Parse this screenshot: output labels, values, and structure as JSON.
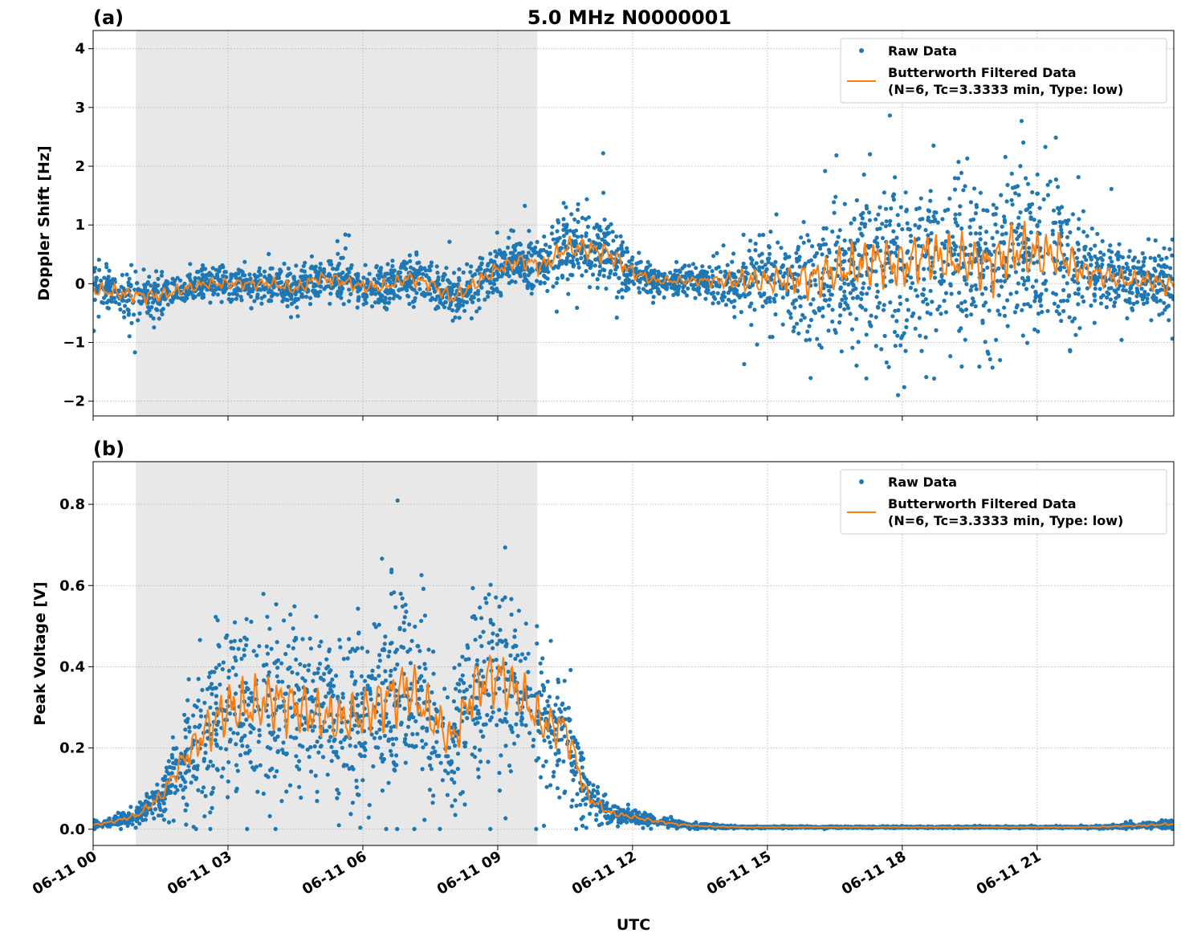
{
  "chart_data": [
    {
      "type": "scatter",
      "panel_label": "(a)",
      "title": "5.0 MHz N0000001",
      "xlabel": "",
      "ylabel": "Doppler Shift [Hz]",
      "xlim": [
        "06-11 00:00",
        "06-12 00:00"
      ],
      "ylim": [
        -2.25,
        4.31
      ],
      "yticks": [
        -2,
        -1,
        0,
        1,
        2,
        3,
        4
      ],
      "ytick_labels": [
        "−2",
        "−1",
        "0",
        "1",
        "2",
        "3",
        "4"
      ],
      "shaded_interval_hours": [
        0.95,
        9.88
      ],
      "grid": true,
      "legend_position": "top-right",
      "series": [
        {
          "name": "Raw Data",
          "kind": "points",
          "color": "#1f77b4"
        },
        {
          "name": "Butterworth Filtered Data\n(N=6, Tc=3.3333 min, Type: low)",
          "kind": "line",
          "color": "#ff7f0e"
        }
      ],
      "legend": [
        "Raw Data",
        "Butterworth Filtered Data",
        "(N=6, Tc=3.3333 min, Type: low)"
      ],
      "hours": [
        0,
        0.5,
        1,
        1.5,
        2,
        2.5,
        3,
        3.5,
        4,
        4.5,
        5,
        5.5,
        6,
        6.5,
        7,
        7.5,
        8,
        8.5,
        9,
        9.5,
        10,
        10.5,
        11,
        11.5,
        12,
        12.5,
        13,
        13.5,
        14,
        14.5,
        15,
        15.5,
        16,
        16.5,
        17,
        17.5,
        18,
        18.5,
        19,
        19.5,
        20,
        20.5,
        21,
        21.5,
        22,
        22.5,
        23,
        23.5,
        24
      ],
      "filtered": [
        -0.1,
        -0.15,
        -0.2,
        -0.2,
        -0.1,
        0.0,
        0.0,
        0.0,
        0.0,
        -0.1,
        0.1,
        0.05,
        -0.05,
        -0.05,
        0.1,
        0.0,
        -0.25,
        0.0,
        0.25,
        0.4,
        0.3,
        0.6,
        0.6,
        0.5,
        0.2,
        0.05,
        0.05,
        0.05,
        0.05,
        0.05,
        0.05,
        0.05,
        0.1,
        0.2,
        0.3,
        0.4,
        0.3,
        0.5,
        0.4,
        0.4,
        0.3,
        0.6,
        0.5,
        0.5,
        0.2,
        0.15,
        0.05,
        0.05,
        -0.05
      ],
      "raw_spread": [
        0.2,
        0.2,
        0.2,
        0.18,
        0.15,
        0.15,
        0.15,
        0.15,
        0.15,
        0.18,
        0.18,
        0.18,
        0.18,
        0.18,
        0.18,
        0.18,
        0.2,
        0.2,
        0.18,
        0.2,
        0.25,
        0.28,
        0.3,
        0.3,
        0.2,
        0.12,
        0.12,
        0.12,
        0.2,
        0.35,
        0.35,
        0.4,
        0.55,
        0.6,
        0.65,
        0.7,
        0.7,
        0.7,
        0.7,
        0.7,
        0.75,
        0.8,
        0.7,
        0.6,
        0.4,
        0.3,
        0.25,
        0.25,
        0.3
      ]
    },
    {
      "type": "scatter",
      "panel_label": "(b)",
      "xlabel": "UTC",
      "ylabel": "Peak Voltage [V]",
      "xlim": [
        "06-11 00:00",
        "06-12 00:00"
      ],
      "ylim": [
        -0.04,
        0.905
      ],
      "yticks": [
        0.0,
        0.2,
        0.4,
        0.6,
        0.8
      ],
      "ytick_labels": [
        "0.0",
        "0.2",
        "0.4",
        "0.6",
        "0.8"
      ],
      "xtick_labels": [
        "06-11 00",
        "06-11 03",
        "06-11 06",
        "06-11 09",
        "06-11 12",
        "06-11 15",
        "06-11 18",
        "06-11 21"
      ],
      "xtick_hours": [
        0,
        3,
        6,
        9,
        12,
        15,
        18,
        21
      ],
      "shaded_interval_hours": [
        0.95,
        9.88
      ],
      "grid": true,
      "legend_position": "top-right",
      "series": [
        {
          "name": "Raw Data",
          "kind": "points",
          "color": "#1f77b4"
        },
        {
          "name": "Butterworth Filtered Data\n(N=6, Tc=3.3333 min, Type: low)",
          "kind": "line",
          "color": "#ff7f0e"
        }
      ],
      "legend": [
        "Raw Data",
        "Butterworth Filtered Data",
        "(N=6, Tc=3.3333 min, Type: low)"
      ],
      "hours": [
        0,
        0.5,
        1,
        1.5,
        2,
        2.5,
        3,
        3.5,
        4,
        4.5,
        5,
        5.5,
        6,
        6.5,
        7,
        7.5,
        8,
        8.5,
        9,
        9.5,
        10,
        10.5,
        11,
        11.5,
        12,
        12.5,
        13,
        13.5,
        14,
        14.5,
        15,
        15.5,
        16,
        16.5,
        17,
        17.5,
        18,
        18.5,
        19,
        19.5,
        20,
        20.5,
        21,
        21.5,
        22,
        22.5,
        23,
        23.5,
        24
      ],
      "filtered": [
        0.01,
        0.02,
        0.035,
        0.08,
        0.17,
        0.24,
        0.3,
        0.3,
        0.32,
        0.3,
        0.28,
        0.27,
        0.28,
        0.32,
        0.35,
        0.28,
        0.22,
        0.35,
        0.38,
        0.33,
        0.26,
        0.25,
        0.08,
        0.04,
        0.03,
        0.02,
        0.012,
        0.008,
        0.006,
        0.005,
        0.005,
        0.005,
        0.005,
        0.005,
        0.005,
        0.005,
        0.005,
        0.005,
        0.005,
        0.005,
        0.005,
        0.005,
        0.005,
        0.005,
        0.005,
        0.006,
        0.008,
        0.01,
        0.013
      ],
      "raw_spread": [
        0.004,
        0.006,
        0.01,
        0.025,
        0.05,
        0.09,
        0.11,
        0.11,
        0.12,
        0.11,
        0.1,
        0.1,
        0.1,
        0.12,
        0.12,
        0.1,
        0.08,
        0.11,
        0.12,
        0.1,
        0.08,
        0.08,
        0.03,
        0.012,
        0.008,
        0.006,
        0.004,
        0.003,
        0.002,
        0.001,
        0.001,
        0.001,
        0.001,
        0.001,
        0.001,
        0.001,
        0.001,
        0.001,
        0.001,
        0.001,
        0.001,
        0.001,
        0.001,
        0.001,
        0.001,
        0.002,
        0.003,
        0.004,
        0.005
      ]
    }
  ],
  "labels": {
    "panel_a": "(a)",
    "panel_b": "(b)",
    "title": "5.0 MHz N0000001",
    "ylabel_a": "Doppler Shift [Hz]",
    "ylabel_b": "Peak Voltage [V]",
    "xlabel": "UTC",
    "legend_raw": "Raw Data",
    "legend_filt_1": "Butterworth Filtered Data",
    "legend_filt_2": "(N=6, Tc=3.3333 min, Type: low)"
  }
}
